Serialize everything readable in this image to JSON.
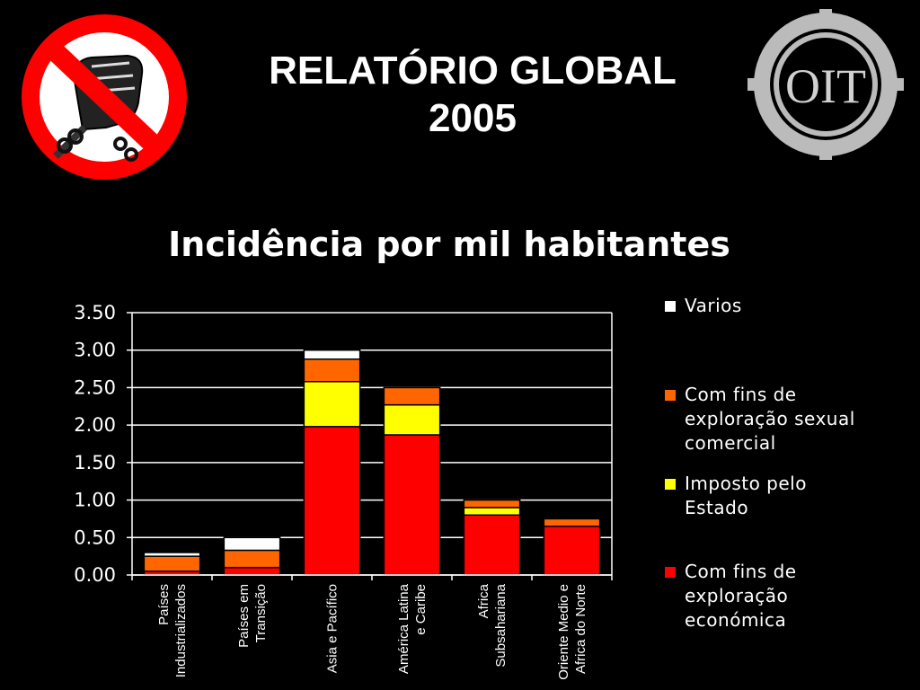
{
  "header": {
    "title_line1": "RELATÓRIO GLOBAL",
    "title_line2": "2005"
  },
  "logos": {
    "left_icon": "prohibited-chained-fist-icon",
    "right_icon": "oit-gear-logo-icon",
    "right_text": "OIT"
  },
  "chart_data": {
    "type": "bar",
    "stacked": true,
    "title": "Incidência por mil habitantes",
    "xlabel": "",
    "ylabel": "",
    "ylim": [
      0,
      3.5
    ],
    "yticks": [
      "0.00",
      "0.50",
      "1.00",
      "1.50",
      "2.00",
      "2.50",
      "3.00",
      "3.50"
    ],
    "grid": true,
    "legend_position": "right",
    "categories": [
      [
        "Países",
        "Industrializados"
      ],
      [
        "Países em",
        "Transição"
      ],
      [
        "Asia e Pacífico"
      ],
      [
        "América Latina",
        "e Caribe"
      ],
      [
        "Africa",
        "Subsahariana"
      ],
      [
        "Oriente Medio e",
        "Africa do Norte"
      ]
    ],
    "series": [
      {
        "name": "Com fins de exploração económica",
        "legend_lines": [
          "Com fins de",
          "exploração",
          "económica"
        ],
        "color": "#ff0000",
        "values": [
          0.05,
          0.1,
          1.98,
          1.87,
          0.8,
          0.65
        ]
      },
      {
        "name": "Imposto pelo Estado",
        "legend_lines": [
          "Imposto pelo",
          "Estado"
        ],
        "color": "#ffff00",
        "values": [
          0.0,
          0.0,
          0.6,
          0.4,
          0.1,
          0.0
        ]
      },
      {
        "name": "Com fins de exploração sexual comercial",
        "legend_lines": [
          "Com fins de",
          "exploração sexual",
          "comercial"
        ],
        "color": "#ff6600",
        "values": [
          0.2,
          0.23,
          0.3,
          0.23,
          0.1,
          0.1
        ]
      },
      {
        "name": "Varios",
        "legend_lines": [
          "Varios"
        ],
        "color": "#ffffff",
        "values": [
          0.05,
          0.17,
          0.12,
          0.0,
          0.0,
          0.0
        ]
      }
    ]
  }
}
